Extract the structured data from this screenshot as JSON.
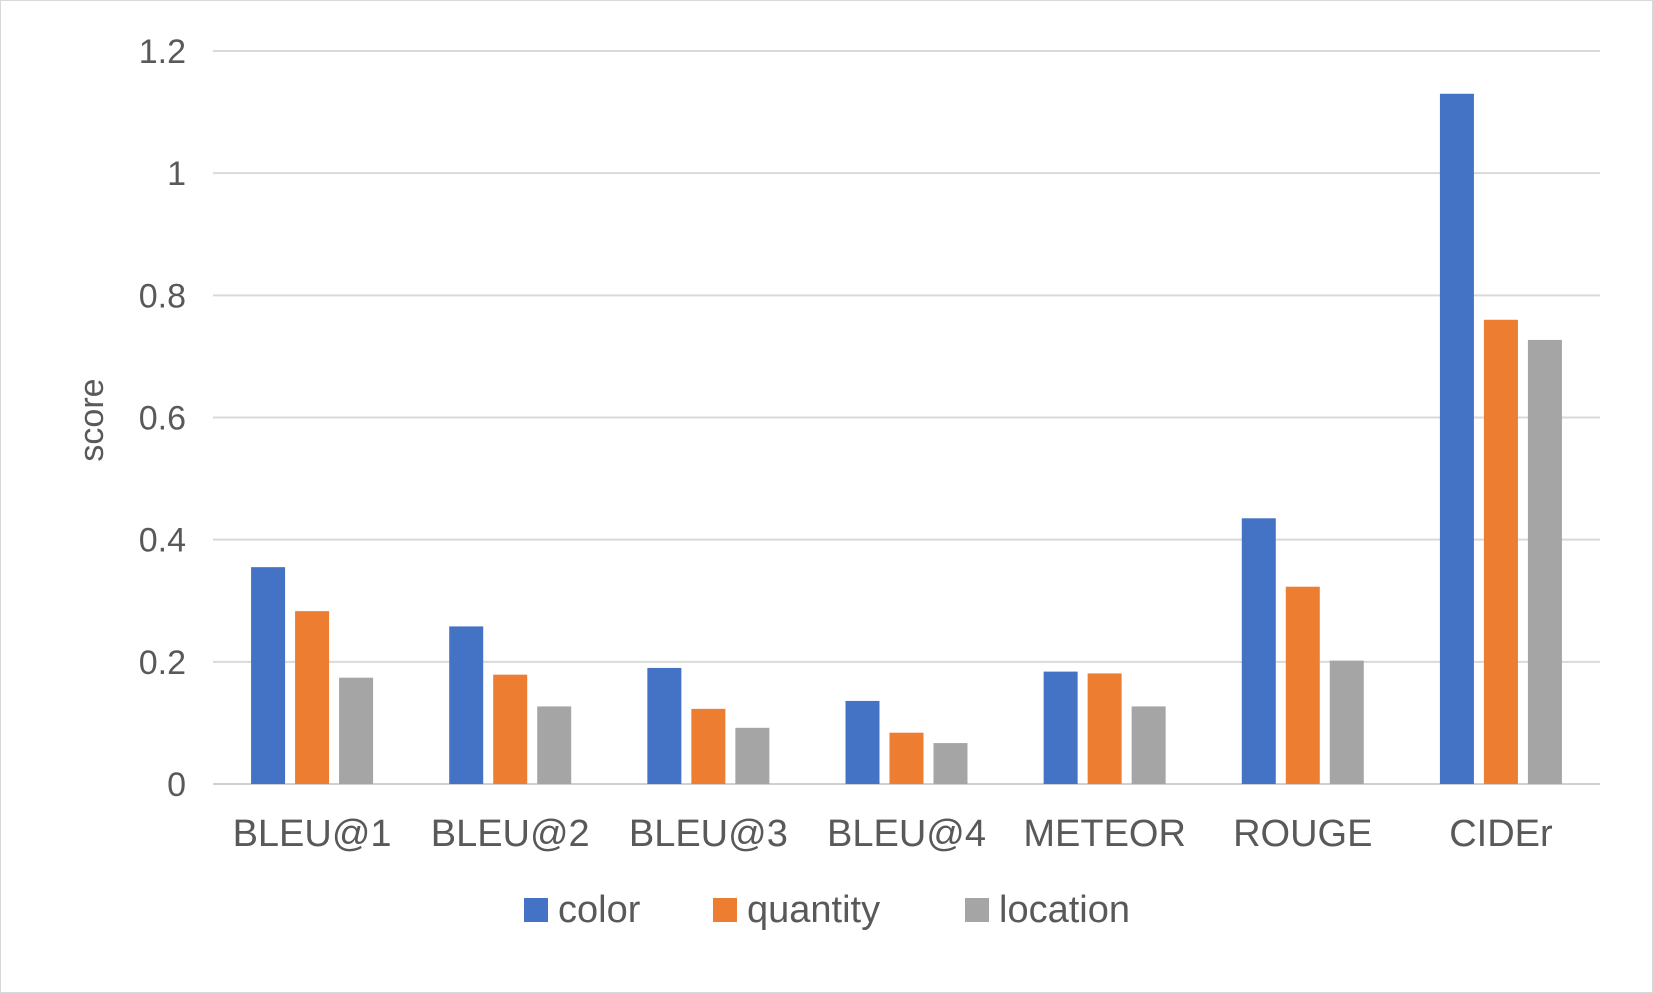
{
  "chart_data": {
    "type": "bar",
    "title": "",
    "xlabel": "",
    "ylabel": "score",
    "ylim": [
      0,
      1.2
    ],
    "yticks": [
      "0",
      "0.2",
      "0.4",
      "0.6",
      "0.8",
      "1",
      "1.2"
    ],
    "grid": true,
    "legend_position": "bottom",
    "categories": [
      "BLEU@1",
      "BLEU@2",
      "BLEU@3",
      "BLEU@4",
      "METEOR",
      "ROUGE",
      "CIDEr"
    ],
    "series": [
      {
        "name": "color",
        "color": "#4472c4",
        "values": [
          0.355,
          0.258,
          0.19,
          0.136,
          0.184,
          0.435,
          1.13
        ]
      },
      {
        "name": "quantity",
        "color": "#ed7d31",
        "values": [
          0.283,
          0.179,
          0.123,
          0.084,
          0.181,
          0.323,
          0.76
        ]
      },
      {
        "name": "location",
        "color": "#a5a5a5",
        "values": [
          0.174,
          0.127,
          0.092,
          0.067,
          0.127,
          0.202,
          0.727
        ]
      }
    ]
  }
}
